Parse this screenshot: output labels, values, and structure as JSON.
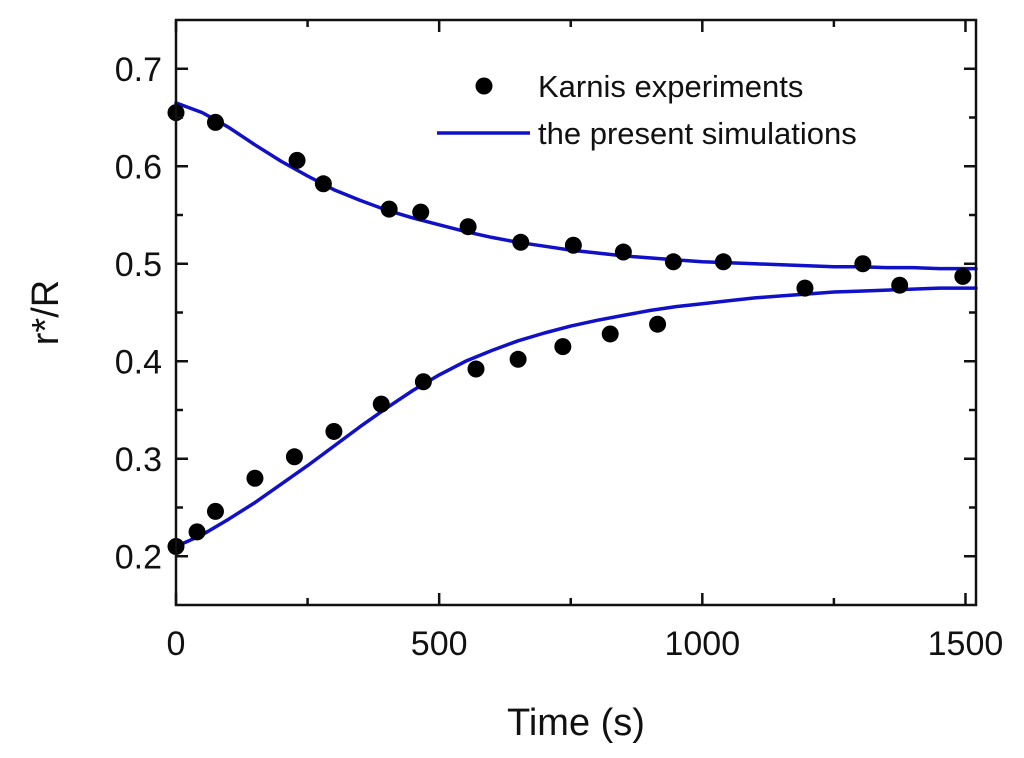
{
  "colors": {
    "marker": "#000000",
    "line": "#1010c8",
    "axis": "#111111"
  },
  "chart_data": {
    "type": "scatter",
    "title": "",
    "xlabel": "Time (s)",
    "ylabel": "r*/R",
    "xlim": [
      0,
      1520
    ],
    "ylim": [
      0.15,
      0.75
    ],
    "xticks": [
      0,
      500,
      1000,
      1500
    ],
    "xtick_labels": [
      "0",
      "500",
      "1000",
      "1500"
    ],
    "xminor": [
      250,
      750,
      1250
    ],
    "yticks": [
      0.2,
      0.3,
      0.4,
      0.5,
      0.6,
      0.7
    ],
    "ytick_labels": [
      "0.2",
      "0.3",
      "0.4",
      "0.5",
      "0.6",
      "0.7"
    ],
    "yminor": [
      0.25,
      0.35,
      0.45,
      0.55,
      0.65
    ],
    "grid": false,
    "legend": {
      "position": "top-right",
      "entries": [
        {
          "label": "Karnis experiments",
          "kind": "marker"
        },
        {
          "label": "the present simulations",
          "kind": "line"
        }
      ]
    },
    "series": [
      {
        "name": "Karnis experiments (upper)",
        "kind": "scatter",
        "legend_label": "Karnis experiments",
        "x": [
          0,
          75,
          230,
          280,
          405,
          465,
          555,
          655,
          755,
          850,
          945,
          1040,
          1305,
          1375,
          1495
        ],
        "y": [
          0.655,
          0.645,
          0.606,
          0.582,
          0.556,
          0.553,
          0.538,
          0.522,
          0.519,
          0.512,
          0.502,
          0.502,
          0.5,
          0.478,
          0.487
        ]
      },
      {
        "name": "Karnis experiments (lower)",
        "kind": "scatter",
        "legend_label": "Karnis experiments",
        "x": [
          0,
          40,
          75,
          150,
          225,
          300,
          390,
          470,
          570,
          650,
          735,
          825,
          915,
          1195
        ],
        "y": [
          0.21,
          0.225,
          0.246,
          0.28,
          0.302,
          0.328,
          0.356,
          0.379,
          0.392,
          0.402,
          0.415,
          0.428,
          0.438,
          0.475
        ]
      },
      {
        "name": "the present simulations (upper)",
        "kind": "line",
        "legend_label": "the present simulations",
        "x": [
          0,
          50,
          100,
          150,
          200,
          250,
          300,
          350,
          400,
          450,
          500,
          550,
          600,
          650,
          700,
          750,
          800,
          850,
          900,
          950,
          1000,
          1050,
          1100,
          1150,
          1200,
          1250,
          1300,
          1350,
          1400,
          1450,
          1500,
          1520
        ],
        "y": [
          0.665,
          0.655,
          0.64,
          0.622,
          0.605,
          0.59,
          0.576,
          0.565,
          0.555,
          0.547,
          0.54,
          0.533,
          0.527,
          0.522,
          0.518,
          0.514,
          0.511,
          0.508,
          0.506,
          0.504,
          0.502,
          0.501,
          0.5,
          0.499,
          0.498,
          0.497,
          0.497,
          0.496,
          0.496,
          0.495,
          0.495,
          0.495
        ]
      },
      {
        "name": "the present simulations (lower)",
        "kind": "line",
        "legend_label": "the present simulations",
        "x": [
          0,
          50,
          100,
          150,
          200,
          250,
          300,
          350,
          400,
          450,
          500,
          550,
          600,
          650,
          700,
          750,
          800,
          850,
          900,
          950,
          1000,
          1050,
          1100,
          1150,
          1200,
          1250,
          1300,
          1350,
          1400,
          1450,
          1500,
          1520
        ],
        "y": [
          0.21,
          0.222,
          0.238,
          0.255,
          0.274,
          0.293,
          0.313,
          0.333,
          0.352,
          0.37,
          0.386,
          0.4,
          0.411,
          0.421,
          0.429,
          0.436,
          0.442,
          0.447,
          0.452,
          0.456,
          0.459,
          0.462,
          0.465,
          0.467,
          0.469,
          0.471,
          0.472,
          0.473,
          0.474,
          0.475,
          0.475,
          0.475
        ]
      }
    ]
  }
}
